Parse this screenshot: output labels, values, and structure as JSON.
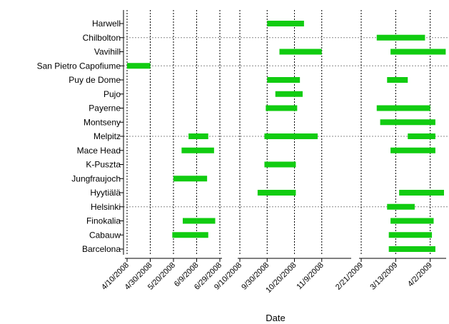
{
  "chart_data": {
    "type": "gantt",
    "title": "",
    "xlabel": "Date",
    "ylabel": "",
    "colors": {
      "bar": "#11cc11",
      "axis": "#000000",
      "grid": "#000000"
    },
    "grid": "dashed vertical lines at ticks, dashed horizontal lines at every fifth station",
    "categories": [
      "Harwell",
      "Chilbolton",
      "Vavihill",
      "San Pietro Capofiume",
      "Puy de Dome",
      "Pujo",
      "Payerne",
      "Montseny",
      "Melpitz",
      "Mace Head",
      "K-Puszta",
      "Jungfraujoch",
      "Hyytiälä",
      "Helsinki",
      "Finokalia",
      "Cabauw",
      "Barcelona"
    ],
    "gridded_categories": [
      "Chilbolton",
      "San Pietro Capofiume",
      "Melpitz",
      "Helsinki"
    ],
    "panels": [
      {
        "range": [
          "2008-04-10",
          "2008-06-29"
        ],
        "ticks": [
          {
            "label": "4/10/2008",
            "date": "2008-04-10"
          },
          {
            "label": "4/30/2008",
            "date": "2008-04-30"
          },
          {
            "label": "5/20/2008",
            "date": "2008-05-20"
          },
          {
            "label": "6/9/2008",
            "date": "2008-06-09"
          },
          {
            "label": "6/29/2008",
            "date": "2008-06-29"
          }
        ]
      },
      {
        "range": [
          "2008-09-10",
          "2008-11-29"
        ],
        "ticks": [
          {
            "label": "9/10/2008",
            "date": "2008-09-10"
          },
          {
            "label": "9/30/2008",
            "date": "2008-09-30"
          },
          {
            "label": "10/20/2008",
            "date": "2008-10-20"
          },
          {
            "label": "11/9/2008",
            "date": "2008-11-09"
          }
        ]
      },
      {
        "range": [
          "2009-02-21",
          "2009-04-10"
        ],
        "ticks": [
          {
            "label": "2/21/2009",
            "date": "2009-02-21"
          },
          {
            "label": "3/13/2009",
            "date": "2009-03-13"
          },
          {
            "label": "4/2/2009",
            "date": "2009-04-02"
          }
        ]
      }
    ],
    "bars": [
      {
        "station": "Harwell",
        "start": "2008-09-30",
        "end": "2008-10-27"
      },
      {
        "station": "Chilbolton",
        "start": "2009-03-02",
        "end": "2009-03-30"
      },
      {
        "station": "Vavihill",
        "start": "2008-10-09",
        "end": "2008-11-09"
      },
      {
        "station": "Vavihill",
        "start": "2009-03-10",
        "end": "2009-04-11"
      },
      {
        "station": "San Pietro Capofiume",
        "start": "2008-04-10",
        "end": "2008-04-30"
      },
      {
        "station": "Puy de Dome",
        "start": "2008-09-30",
        "end": "2008-10-24"
      },
      {
        "station": "Puy de Dome",
        "start": "2009-03-08",
        "end": "2009-03-20"
      },
      {
        "station": "Pujo",
        "start": "2008-10-06",
        "end": "2008-10-26"
      },
      {
        "station": "Payerne",
        "start": "2008-09-29",
        "end": "2008-10-22"
      },
      {
        "station": "Payerne",
        "start": "2009-03-02",
        "end": "2009-04-02"
      },
      {
        "station": "Montseny",
        "start": "2009-03-04",
        "end": "2009-04-05"
      },
      {
        "station": "Melpitz",
        "start": "2008-06-02",
        "end": "2008-06-19"
      },
      {
        "station": "Melpitz",
        "start": "2008-09-28",
        "end": "2008-11-06"
      },
      {
        "station": "Melpitz",
        "start": "2009-03-20",
        "end": "2009-04-05"
      },
      {
        "station": "Mace Head",
        "start": "2008-05-27",
        "end": "2008-06-24"
      },
      {
        "station": "Mace Head",
        "start": "2009-03-10",
        "end": "2009-04-05"
      },
      {
        "station": "K-Puszta",
        "start": "2008-09-28",
        "end": "2008-10-21"
      },
      {
        "station": "Jungfraujoch",
        "start": "2008-05-20",
        "end": "2008-06-18"
      },
      {
        "station": "Hyytiälä",
        "start": "2008-09-23",
        "end": "2008-10-21"
      },
      {
        "station": "Hyytiälä",
        "start": "2009-03-15",
        "end": "2009-04-10"
      },
      {
        "station": "Helsinki",
        "start": "2009-03-08",
        "end": "2009-03-24"
      },
      {
        "station": "Finokalia",
        "start": "2008-05-28",
        "end": "2008-06-25"
      },
      {
        "station": "Finokalia",
        "start": "2009-03-10",
        "end": "2009-04-04"
      },
      {
        "station": "Cabauw",
        "start": "2008-05-19",
        "end": "2008-06-19"
      },
      {
        "station": "Cabauw",
        "start": "2009-03-09",
        "end": "2009-04-03"
      },
      {
        "station": "Barcelona",
        "start": "2009-03-09",
        "end": "2009-04-05"
      }
    ]
  }
}
